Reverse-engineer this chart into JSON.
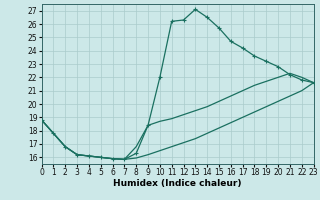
{
  "xlabel": "Humidex (Indice chaleur)",
  "bg_color": "#cce8e8",
  "line_color": "#1a7060",
  "grid_color": "#aacccc",
  "xlim": [
    0,
    23
  ],
  "ylim": [
    15.5,
    27.5
  ],
  "xticks": [
    0,
    1,
    2,
    3,
    4,
    5,
    6,
    7,
    8,
    9,
    10,
    11,
    12,
    13,
    14,
    15,
    16,
    17,
    18,
    19,
    20,
    21,
    22,
    23
  ],
  "yticks": [
    16,
    17,
    18,
    19,
    20,
    21,
    22,
    23,
    24,
    25,
    26,
    27
  ],
  "curve1_x": [
    0,
    1,
    2,
    3,
    4,
    5,
    6,
    7,
    8,
    9,
    10,
    11,
    12,
    13,
    14,
    15,
    16,
    17,
    18,
    19,
    20,
    21,
    22,
    23
  ],
  "curve1_y": [
    18.8,
    17.8,
    16.8,
    16.2,
    16.1,
    16.0,
    15.9,
    15.85,
    16.3,
    18.4,
    22.0,
    26.2,
    26.3,
    27.1,
    26.5,
    25.7,
    24.7,
    24.2,
    23.6,
    23.2,
    22.8,
    22.2,
    21.8,
    21.6
  ],
  "curve2_x": [
    0,
    1,
    2,
    3,
    4,
    5,
    6,
    7,
    8,
    9,
    10,
    11,
    12,
    13,
    14,
    15,
    16,
    17,
    18,
    19,
    20,
    21,
    22,
    23
  ],
  "curve2_y": [
    18.8,
    17.8,
    16.8,
    16.2,
    16.1,
    16.0,
    15.9,
    15.85,
    15.95,
    16.2,
    16.5,
    16.8,
    17.1,
    17.4,
    17.8,
    18.2,
    18.6,
    19.0,
    19.4,
    19.8,
    20.2,
    20.6,
    21.0,
    21.6
  ],
  "curve3_x": [
    0,
    1,
    2,
    3,
    4,
    5,
    6,
    7,
    8,
    9,
    10,
    11,
    12,
    13,
    14,
    15,
    16,
    17,
    18,
    19,
    20,
    21,
    22,
    23
  ],
  "curve3_y": [
    18.8,
    17.8,
    16.8,
    16.2,
    16.1,
    16.0,
    15.9,
    15.85,
    16.8,
    18.4,
    18.7,
    18.9,
    19.2,
    19.5,
    19.8,
    20.2,
    20.6,
    21.0,
    21.4,
    21.7,
    22.0,
    22.3,
    22.0,
    21.6
  ]
}
